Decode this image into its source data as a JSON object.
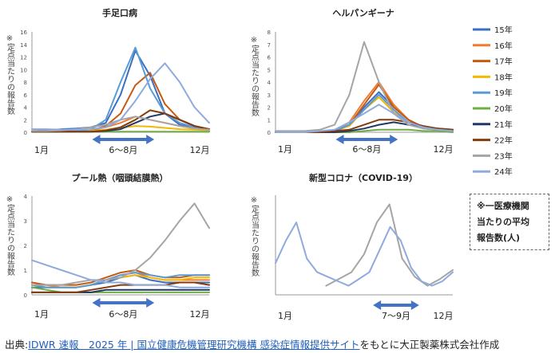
{
  "legend": {
    "entries": [
      {
        "label": "15年",
        "color": "#3a6fc4"
      },
      {
        "label": "16年",
        "color": "#ee7d31"
      },
      {
        "label": "17年",
        "color": "#c55a11"
      },
      {
        "label": "18年",
        "color": "#f5b800"
      },
      {
        "label": "19年",
        "color": "#5b9bd5"
      },
      {
        "label": "20年",
        "color": "#70ad47"
      },
      {
        "label": "21年",
        "color": "#203864"
      },
      {
        "label": "22年",
        "color": "#843c0c"
      },
      {
        "label": "23年",
        "color": "#a5a5a5"
      },
      {
        "label": "24年",
        "color": "#8faadc"
      }
    ]
  },
  "note": {
    "line1": "※一医療機関",
    "line2": "当たりの平均",
    "line3": "報告数(人)"
  },
  "source": {
    "prefix": "出典:",
    "link": "IDWR 速報　2025 年 | 国立健康危機管理研究機構 感染症情報提供サイト",
    "suffix": "をもとに大正製薬株式会社作成"
  },
  "chart_data": [
    {
      "type": "line",
      "title": "手足口病",
      "ylabel": "※定点当たりの報告数",
      "ylim": [
        0,
        16
      ],
      "yticks": [
        "0",
        "2",
        "4",
        "6",
        "8",
        "10",
        "12",
        "14",
        "16"
      ],
      "x_start_label": "1月",
      "x_end_label": "12月",
      "range_label": "6〜8月",
      "range": [
        0.34,
        0.69
      ],
      "series": [
        {
          "name": "15年",
          "values": [
            0.2,
            0.3,
            0.5,
            0.6,
            0.8,
            1.5,
            6,
            13,
            9,
            3,
            1.2,
            0.8,
            0.5
          ]
        },
        {
          "name": "16年",
          "values": [
            0.1,
            0.1,
            0.1,
            0.2,
            0.3,
            0.8,
            1.5,
            2.5,
            2,
            1.5,
            1,
            0.6,
            0.3
          ]
        },
        {
          "name": "17年",
          "values": [
            0.1,
            0.1,
            0.1,
            0.1,
            0.3,
            1,
            3,
            7.5,
            9.5,
            4.5,
            2,
            1,
            0.5
          ]
        },
        {
          "name": "18年",
          "values": [
            0.1,
            0.1,
            0.1,
            0.2,
            0.2,
            0.4,
            0.7,
            1,
            0.9,
            0.7,
            0.5,
            0.4,
            0.3
          ]
        },
        {
          "name": "19年",
          "values": [
            0.1,
            0.1,
            0.1,
            0.2,
            0.5,
            2,
            8,
            13.5,
            7,
            3,
            1.5,
            0.8,
            0.5
          ]
        },
        {
          "name": "20年",
          "values": [
            0.1,
            0.1,
            0.1,
            0.1,
            0.1,
            0.1,
            0.1,
            0.1,
            0.1,
            0.1,
            0.1,
            0.1,
            0.1
          ]
        },
        {
          "name": "21年",
          "values": [
            0.1,
            0.1,
            0.1,
            0.1,
            0.1,
            0.2,
            0.5,
            1.5,
            2.5,
            3,
            2,
            1,
            0.5
          ]
        },
        {
          "name": "22年",
          "values": [
            0.1,
            0.1,
            0.1,
            0.1,
            0.1,
            0.3,
            0.8,
            2,
            3.5,
            3,
            2,
            1,
            0.5
          ]
        },
        {
          "name": "23年",
          "values": [
            0.2,
            0.2,
            0.3,
            0.5,
            0.8,
            1.2,
            2,
            2.5,
            2,
            1.5,
            1,
            0.6,
            0.4
          ]
        },
        {
          "name": "24年",
          "values": [
            0.5,
            0.5,
            0.4,
            0.4,
            0.5,
            0.8,
            2,
            5,
            8.5,
            11,
            8,
            4,
            1.5
          ]
        }
      ]
    },
    {
      "type": "line",
      "title": "ヘルパンギーナ",
      "ylabel": "※定点当たりの報告数",
      "ylim": [
        0,
        8
      ],
      "yticks": [
        "0",
        "1",
        "2",
        "3",
        "4",
        "5",
        "6",
        "7",
        "8"
      ],
      "x_start_label": "1月",
      "x_end_label": "12月",
      "range_label": "6〜8月",
      "range": [
        0.34,
        0.69
      ],
      "series": [
        {
          "name": "15年",
          "values": [
            0,
            0,
            0,
            0,
            0.1,
            0.6,
            2,
            3.2,
            2,
            1,
            0.4,
            0.2,
            0.1
          ]
        },
        {
          "name": "16年",
          "values": [
            0,
            0,
            0,
            0,
            0.1,
            0.8,
            2.5,
            4,
            2.2,
            1,
            0.4,
            0.2,
            0.1
          ]
        },
        {
          "name": "17年",
          "values": [
            0,
            0,
            0,
            0,
            0.1,
            0.6,
            2.2,
            3.8,
            2,
            1,
            0.4,
            0.2,
            0.1
          ]
        },
        {
          "name": "18年",
          "values": [
            0,
            0,
            0,
            0,
            0.1,
            0.5,
            1.8,
            2.8,
            1.6,
            0.8,
            0.3,
            0.2,
            0.1
          ]
        },
        {
          "name": "19年",
          "values": [
            0,
            0,
            0,
            0,
            0.1,
            0.6,
            1.8,
            3,
            1.8,
            0.8,
            0.3,
            0.2,
            0.1
          ]
        },
        {
          "name": "20年",
          "values": [
            0,
            0,
            0,
            0,
            0,
            0,
            0.1,
            0.2,
            0.2,
            0.2,
            0.1,
            0.1,
            0
          ]
        },
        {
          "name": "21年",
          "values": [
            0,
            0,
            0,
            0,
            0,
            0.1,
            0.3,
            0.6,
            0.8,
            0.6,
            0.4,
            0.3,
            0.2
          ]
        },
        {
          "name": "22年",
          "values": [
            0,
            0,
            0,
            0,
            0.1,
            0.2,
            0.6,
            1,
            1,
            0.8,
            0.5,
            0.3,
            0.2
          ]
        },
        {
          "name": "23年",
          "values": [
            0.1,
            0.1,
            0.1,
            0.2,
            0.6,
            3,
            7.2,
            4,
            1.5,
            0.6,
            0.3,
            0.2,
            0.1
          ]
        },
        {
          "name": "24年",
          "values": [
            0,
            0,
            0,
            0.1,
            0.2,
            0.8,
            1.5,
            2.2,
            1.5,
            0.8,
            0.4,
            0.2,
            0.1
          ]
        }
      ]
    },
    {
      "type": "line",
      "title": "プール熱（咽頭結膜熱）",
      "ylabel": "※定点当たりの報告数",
      "ylim": [
        0,
        4
      ],
      "yticks": [
        "0",
        "1",
        "2",
        "3",
        "4"
      ],
      "x_start_label": "1月",
      "x_end_label": "12月",
      "range_label": "6〜8月",
      "range": [
        0.34,
        0.69
      ],
      "series": [
        {
          "name": "15年",
          "values": [
            0.3,
            0.3,
            0.3,
            0.3,
            0.4,
            0.5,
            0.7,
            0.8,
            0.6,
            0.5,
            0.5,
            0.5,
            0.5
          ]
        },
        {
          "name": "16年",
          "values": [
            0.4,
            0.4,
            0.3,
            0.3,
            0.4,
            0.6,
            0.8,
            0.9,
            0.7,
            0.6,
            0.6,
            0.6,
            0.6
          ]
        },
        {
          "name": "17年",
          "values": [
            0.5,
            0.4,
            0.4,
            0.4,
            0.5,
            0.7,
            0.9,
            1,
            0.8,
            0.7,
            0.7,
            0.8,
            0.8
          ]
        },
        {
          "name": "18年",
          "values": [
            0.4,
            0.3,
            0.3,
            0.3,
            0.4,
            0.6,
            0.7,
            0.8,
            0.7,
            0.6,
            0.6,
            0.7,
            0.7
          ]
        },
        {
          "name": "19年",
          "values": [
            0.4,
            0.3,
            0.3,
            0.3,
            0.4,
            0.6,
            0.8,
            0.9,
            0.8,
            0.7,
            0.8,
            0.8,
            0.8
          ]
        },
        {
          "name": "20年",
          "values": [
            0.3,
            0.2,
            0.1,
            0.1,
            0.1,
            0.1,
            0.1,
            0.1,
            0.1,
            0.1,
            0.1,
            0.1,
            0.1
          ]
        },
        {
          "name": "21年",
          "values": [
            0.1,
            0.1,
            0.1,
            0.1,
            0.1,
            0.2,
            0.2,
            0.2,
            0.2,
            0.2,
            0.2,
            0.2,
            0.2
          ]
        },
        {
          "name": "22年",
          "values": [
            0.1,
            0.1,
            0.1,
            0.1,
            0.2,
            0.3,
            0.4,
            0.4,
            0.4,
            0.4,
            0.5,
            0.5,
            0.4
          ]
        },
        {
          "name": "23年",
          "values": [
            0.4,
            0.4,
            0.4,
            0.5,
            0.6,
            0.6,
            0.7,
            1,
            1.5,
            2.2,
            3,
            3.7,
            2.7
          ]
        },
        {
          "name": "24年",
          "values": [
            1.4,
            1.2,
            1,
            0.8,
            0.6,
            0.5,
            0.5,
            0.4,
            0.4,
            0.4,
            0.3,
            0.3,
            0.3
          ]
        }
      ]
    },
    {
      "type": "line",
      "title": "新型コロナ（COVID-19）",
      "ylabel": "※定点当たりの報告数",
      "ylim": [
        0,
        22
      ],
      "x_start_label": "1月",
      "x_end_label": "12月",
      "range_label": "7〜9月",
      "range": [
        0.55,
        0.81
      ],
      "series": [
        {
          "name": "23年",
          "values": [
            null,
            null,
            null,
            null,
            2,
            3.5,
            5,
            9,
            16,
            20,
            8,
            4,
            2,
            3.5,
            5.5
          ]
        },
        {
          "name": "24年",
          "values": [
            7,
            12,
            16,
            8,
            5,
            4,
            3,
            2,
            3.5,
            5,
            10,
            15,
            12,
            6,
            3,
            2,
            3,
            5
          ]
        }
      ]
    }
  ]
}
